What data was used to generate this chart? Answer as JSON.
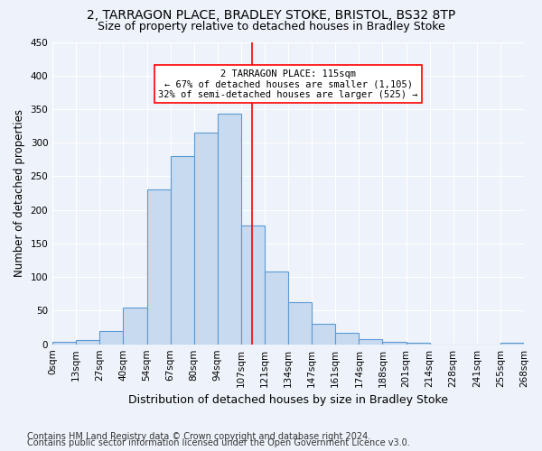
{
  "title1": "2, TARRAGON PLACE, BRADLEY STOKE, BRISTOL, BS32 8TP",
  "title2": "Size of property relative to detached houses in Bradley Stoke",
  "xlabel": "Distribution of detached houses by size in Bradley Stoke",
  "ylabel": "Number of detached properties",
  "footnote1": "Contains HM Land Registry data © Crown copyright and database right 2024.",
  "footnote2": "Contains public sector information licensed under the Open Government Licence v3.0.",
  "bin_labels": [
    "0sqm",
    "13sqm",
    "27sqm",
    "40sqm",
    "54sqm",
    "67sqm",
    "80sqm",
    "94sqm",
    "107sqm",
    "121sqm",
    "134sqm",
    "147sqm",
    "161sqm",
    "174sqm",
    "188sqm",
    "201sqm",
    "214sqm",
    "228sqm",
    "241sqm",
    "255sqm",
    "268sqm"
  ],
  "bar_values": [
    3,
    6,
    20,
    54,
    230,
    280,
    315,
    343,
    177,
    108,
    63,
    30,
    17,
    7,
    4,
    2,
    0,
    0,
    0,
    2
  ],
  "bar_color": "#c8daef",
  "bar_edge_color": "#5b9bd5",
  "vline_x_bin": 8.46,
  "vline_color": "red",
  "annotation_text": "2 TARRAGON PLACE: 115sqm\n← 67% of detached houses are smaller (1,105)\n32% of semi-detached houses are larger (525) →",
  "annotation_box_color": "white",
  "annotation_box_edge": "red",
  "ylim": [
    0,
    450
  ],
  "yticks": [
    0,
    50,
    100,
    150,
    200,
    250,
    300,
    350,
    400,
    450
  ],
  "background_color": "#eef2fa",
  "grid_color": "#ffffff",
  "title1_fontsize": 10,
  "title2_fontsize": 9,
  "xlabel_fontsize": 9,
  "ylabel_fontsize": 8.5,
  "footnote_fontsize": 7,
  "tick_fontsize": 7.5
}
